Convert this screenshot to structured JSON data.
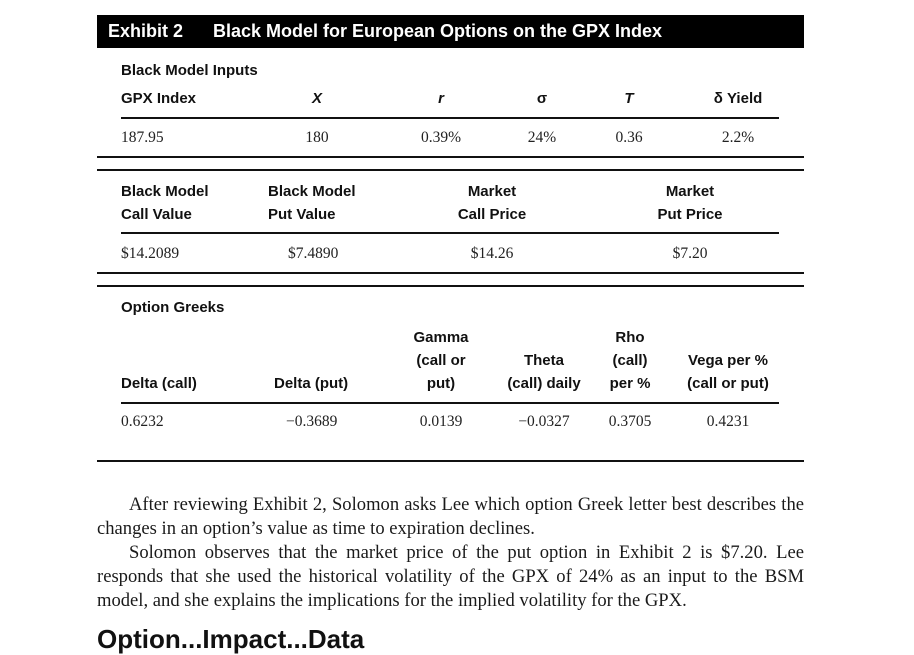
{
  "exhibit": {
    "number": "Exhibit 2",
    "title": "Black Model for European Options on the GPX Index"
  },
  "inputs": {
    "section_label": "Black Model Inputs",
    "headers": [
      "GPX Index",
      "X",
      "r",
      "σ",
      "T",
      "δ Yield"
    ],
    "values": [
      "187.95",
      "180",
      "0.39%",
      "24%",
      "0.36",
      "2.2%"
    ]
  },
  "values_section": {
    "headers": [
      "Black Model\nCall Value",
      "Black Model\nPut Value",
      "Market\nCall Price",
      "Market\nPut Price"
    ],
    "values": [
      "$14.2089",
      "$7.4890",
      "$14.26",
      "$7.20"
    ]
  },
  "greeks": {
    "section_label": "Option Greeks",
    "headers": [
      "Delta (call)",
      "Delta (put)",
      "Gamma\n(call or\nput)",
      "Theta\n(call) daily",
      "Rho\n(call)\nper %",
      "Vega per %\n(call or put)"
    ],
    "values": [
      "0.6232",
      "−0.3689",
      "0.0139",
      "−0.0327",
      "0.3705",
      "0.4231"
    ]
  },
  "paragraphs": [
    "After reviewing Exhibit 2, Solomon asks Lee which option Greek letter best describes the changes in an option’s value as time to expiration declines.",
    "Solomon observes that the market price of the put option in Exhibit 2 is $7.20. Lee responds that she used the historical volatility of the GPX of 24% as an input to the BSM model, and she explains the implications for the implied volatility for the GPX."
  ],
  "bottom_heading": "Option...Impact...Data"
}
